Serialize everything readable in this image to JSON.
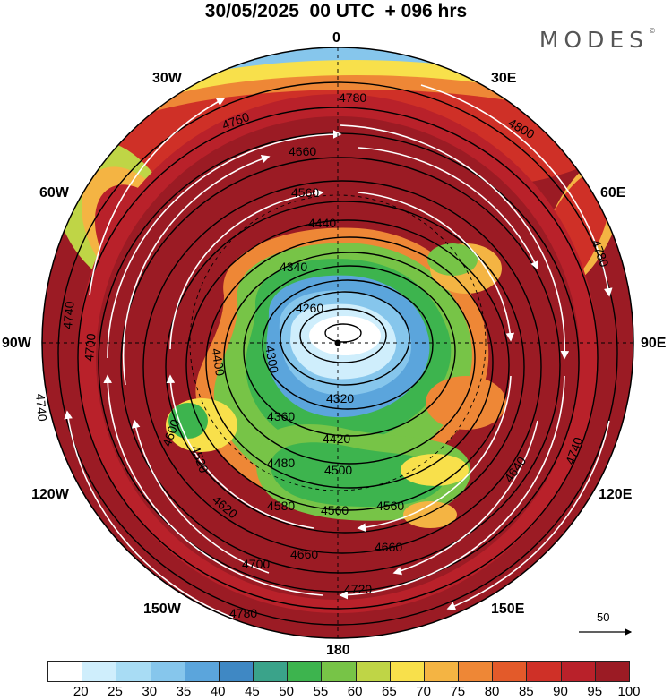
{
  "header": {
    "title": "30/05/2025  00 UTC  + 096 hrs",
    "brand": "MODES",
    "brand_mark": "©"
  },
  "map": {
    "meridian_labels": [
      "0",
      "30E",
      "60E",
      "90E",
      "120E",
      "150E",
      "180",
      "150W",
      "120W",
      "90W",
      "60W",
      "30W"
    ],
    "contour_labels": [
      "4780",
      "4760",
      "4800",
      "4660",
      "4560",
      "4440",
      "4340",
      "4260",
      "4300",
      "4400",
      "4320",
      "4360",
      "4420",
      "4480",
      "4500",
      "4520",
      "4600",
      "4620",
      "4640",
      "4580",
      "4700",
      "4740",
      "4720",
      "4780"
    ],
    "reference_vector_label": "50"
  },
  "colorbar": {
    "ticks": [
      "20",
      "25",
      "30",
      "35",
      "40",
      "45",
      "50",
      "55",
      "60",
      "65",
      "70",
      "75",
      "80",
      "85",
      "90",
      "95",
      "100"
    ],
    "colors": [
      "#ffffff",
      "#cfeefc",
      "#a8dcf4",
      "#86c6ec",
      "#5ba5dc",
      "#3f88c4",
      "#3aa38a",
      "#3db44e",
      "#77c447",
      "#bfd546",
      "#f8e04b",
      "#f4b443",
      "#ee8736",
      "#e35a2a",
      "#cf3027",
      "#b9212a",
      "#9b1b24"
    ]
  }
}
